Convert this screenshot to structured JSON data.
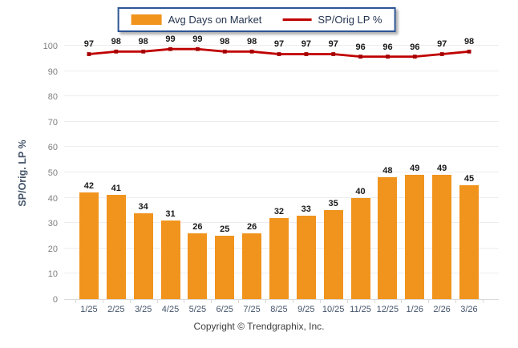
{
  "legend": {
    "bar_label": "Avg Days on Market",
    "line_label": "SP/Orig LP %"
  },
  "y_axis": {
    "title": "SP/Orig. LP %",
    "ticks": [
      0,
      10,
      20,
      30,
      40,
      50,
      60,
      70,
      80,
      90,
      100
    ]
  },
  "footer": {
    "copyright": "Copyright © Trendgraphix, Inc."
  },
  "colors": {
    "bar": "#F0941E",
    "line": "#C00000",
    "marker": "#A50000",
    "grid": "#EDEDED",
    "axis": "#D9D9D9",
    "legend_border": "#2E5595",
    "y_tick_text": "#7F7F7F",
    "x_tick_text": "#44546A",
    "data_label_text": "#1A1A1A"
  },
  "chart_data": {
    "type": "bar",
    "categories": [
      "1/25",
      "2/25",
      "3/25",
      "4/25",
      "5/25",
      "6/25",
      "7/25",
      "8/25",
      "9/25",
      "10/25",
      "11/25",
      "12/25",
      "1/26",
      "2/26",
      "3/26"
    ],
    "series": [
      {
        "name": "Avg Days on Market",
        "type": "bar",
        "values": [
          42,
          41,
          34,
          31,
          26,
          25,
          26,
          32,
          33,
          35,
          40,
          48,
          49,
          49,
          45
        ]
      },
      {
        "name": "SP/Orig LP %",
        "type": "line",
        "values": [
          97,
          98,
          98,
          99,
          99,
          98,
          98,
          97,
          97,
          97,
          96,
          96,
          96,
          97,
          98
        ]
      }
    ],
    "ylabel": "SP/Orig. LP %",
    "ylim": [
      0,
      100
    ],
    "grid": true,
    "legend_position": "top"
  }
}
